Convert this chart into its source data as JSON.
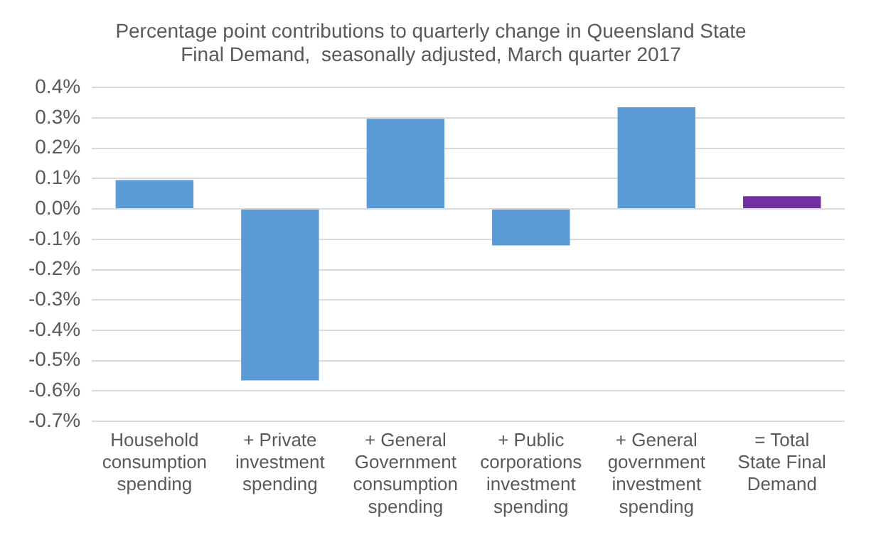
{
  "chart_data": {
    "type": "bar",
    "title": "Percentage point contributions to quarterly change in Queensland State Final Demand,  seasonally adjusted, March quarter 2017",
    "categories": [
      "Household consumption spending",
      "+ Private investment spending",
      "+ General Government consumption spending",
      "+ Public corporations investment spending",
      "+ General government investment spending",
      "= Total State Final Demand"
    ],
    "values": [
      0.095,
      -0.565,
      0.297,
      -0.12,
      0.335,
      0.042
    ],
    "colors": [
      "#5b9bd5",
      "#5b9bd5",
      "#5b9bd5",
      "#5b9bd5",
      "#5b9bd5",
      "#7030a0"
    ],
    "ylim": [
      -0.7,
      0.4
    ],
    "yticks": [
      {
        "value": -0.7,
        "label": "-0.7%"
      },
      {
        "value": -0.6,
        "label": "-0.6%"
      },
      {
        "value": -0.5,
        "label": "-0.5%"
      },
      {
        "value": -0.4,
        "label": "-0.4%"
      },
      {
        "value": -0.3,
        "label": "-0.3%"
      },
      {
        "value": -0.2,
        "label": "-0.2%"
      },
      {
        "value": -0.1,
        "label": "-0.1%"
      },
      {
        "value": 0,
        "label": "0.0%"
      },
      {
        "value": 0.1,
        "label": "0.1%"
      },
      {
        "value": 0.2,
        "label": "0.2%"
      },
      {
        "value": 0.3,
        "label": "0.3%"
      },
      {
        "value": 0.4,
        "label": "0.4%"
      }
    ],
    "grid": "y",
    "legend": false
  }
}
